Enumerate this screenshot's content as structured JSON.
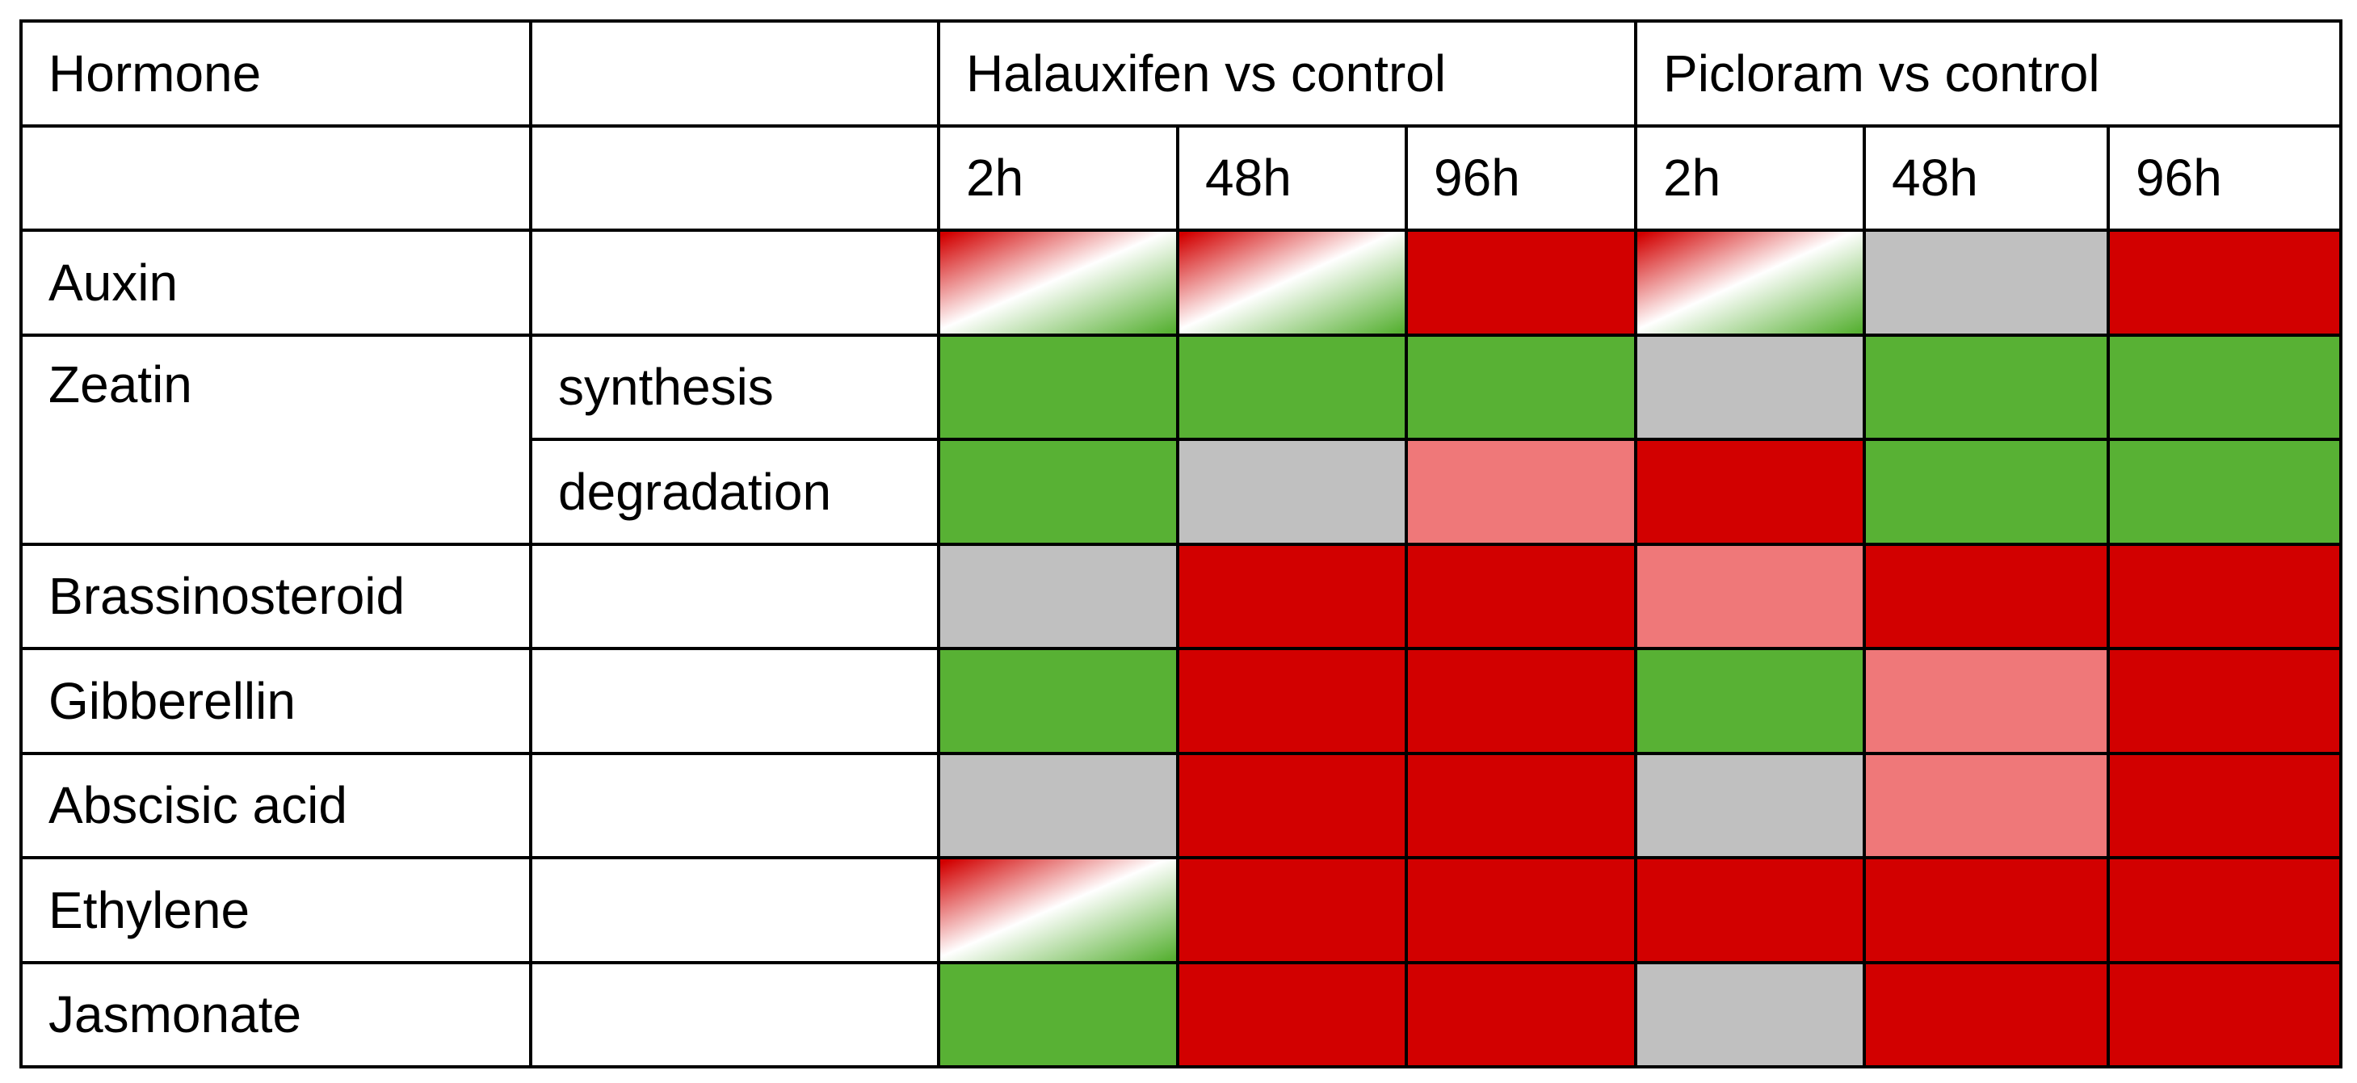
{
  "chart_data": {
    "type": "heatmap",
    "title": "",
    "header": {
      "row_label": "Hormone",
      "groups": [
        "Halauxifen vs control",
        "Picloram vs control"
      ],
      "timepoints": [
        "2h",
        "48h",
        "96h",
        "2h",
        "48h",
        "96h"
      ]
    },
    "legend_states": {
      "up": "#d20000",
      "up_weak": "#ef7879",
      "down": "#58b134",
      "no_change": "#c0c0c0",
      "mixed": "#d20000 to #58b134 gradient"
    },
    "rows": [
      {
        "hormone": "Auxin",
        "subtype": "",
        "states": [
          "mixed",
          "mixed",
          "up",
          "mixed",
          "no_change",
          "up"
        ]
      },
      {
        "hormone": "Zeatin",
        "subtype": "synthesis",
        "states": [
          "down",
          "down",
          "down",
          "no_change",
          "down",
          "down"
        ]
      },
      {
        "hormone": "",
        "subtype": "degradation",
        "states": [
          "down",
          "no_change",
          "up_weak",
          "up",
          "down",
          "down"
        ]
      },
      {
        "hormone": "Brassinosteroid",
        "subtype": "",
        "states": [
          "no_change",
          "up",
          "up",
          "up_weak",
          "up",
          "up"
        ]
      },
      {
        "hormone": "Gibberellin",
        "subtype": "",
        "states": [
          "down",
          "up",
          "up",
          "down",
          "up_weak",
          "up"
        ]
      },
      {
        "hormone": "Abscisic acid",
        "subtype": "",
        "states": [
          "no_change",
          "up",
          "up",
          "no_change",
          "up_weak",
          "up"
        ]
      },
      {
        "hormone": "Ethylene",
        "subtype": "",
        "states": [
          "mixed",
          "up",
          "up",
          "up",
          "up",
          "up"
        ]
      },
      {
        "hormone": "Jasmonate",
        "subtype": "",
        "states": [
          "down",
          "up",
          "up",
          "no_change",
          "up",
          "up"
        ]
      }
    ]
  }
}
